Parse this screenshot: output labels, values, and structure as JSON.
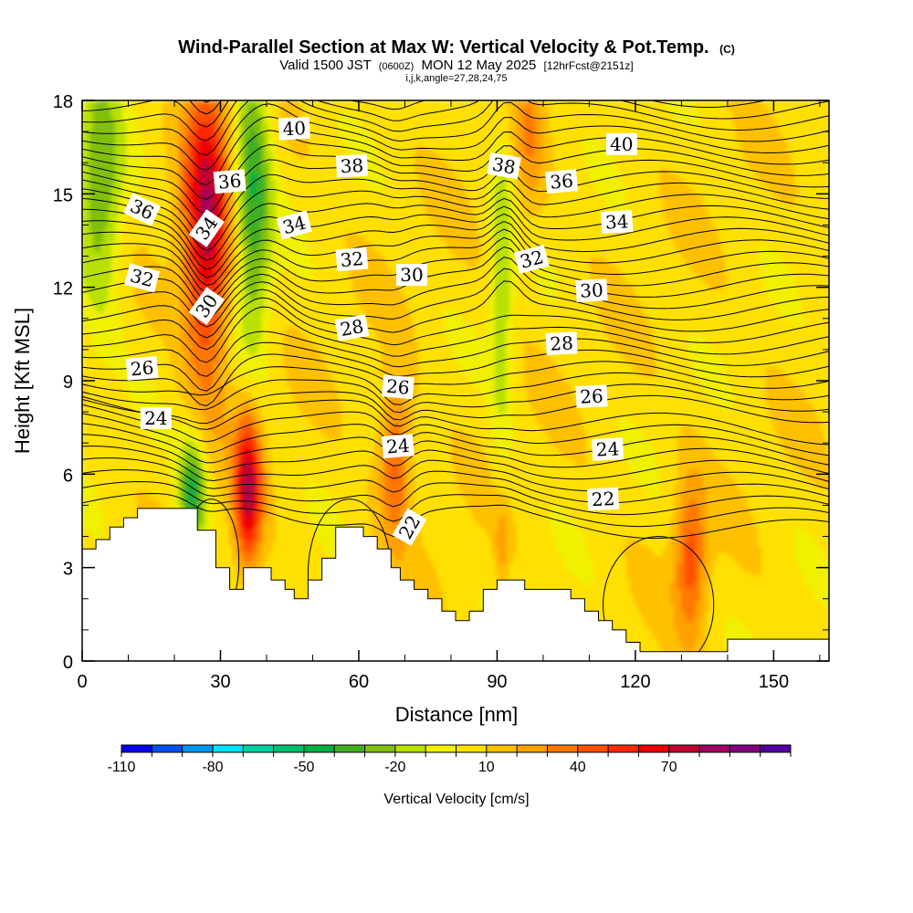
{
  "chart_data": {
    "type": "heatmap",
    "title": "Wind-Parallel Section at Max W: Vertical Velocity & Pot.Temp.",
    "title_tag": "(C)",
    "subtitle_main_a": "Valid 1500 JST",
    "subtitle_utc": "(0600Z)",
    "subtitle_main_b": "MON 12 May 2025",
    "subtitle_fcst": "[12hrFcst@2151z]",
    "subtitle2": "i,j,k,angle=27,28,24,75",
    "xlabel": "Distance [nm]",
    "ylabel": "Height [Kft MSL]",
    "xlim": [
      0,
      162
    ],
    "ylim": [
      0,
      18
    ],
    "x_ticks": [
      0,
      30,
      60,
      90,
      120,
      150
    ],
    "y_ticks": [
      0,
      3,
      6,
      9,
      12,
      15,
      18
    ],
    "x_tick_labels": [
      "0",
      "30",
      "60",
      "90",
      "120",
      "150"
    ],
    "y_tick_labels": [
      "0",
      "3",
      "6",
      "9",
      "12",
      "15",
      "18"
    ],
    "colorbar": {
      "label": "Vertical Velocity [cm/s]",
      "tick_labels": [
        "-110",
        "-80",
        "-50",
        "-20",
        "10",
        "40",
        "70"
      ],
      "colors": [
        "#0000ee",
        "#0050f0",
        "#0094f4",
        "#00e0ff",
        "#00d0a0",
        "#00c070",
        "#00b040",
        "#40b020",
        "#80c010",
        "#b8e000",
        "#f0f000",
        "#ffe000",
        "#ffc000",
        "#ffa000",
        "#ff7800",
        "#ff5000",
        "#ff2800",
        "#ee0000",
        "#c00030",
        "#a00060",
        "#800080",
        "#5000a0"
      ]
    },
    "isentrope_labels": [
      {
        "text": "40",
        "x": 46,
        "y": 17.1,
        "angle": -3
      },
      {
        "text": "38",
        "x": 58.5,
        "y": 15.9,
        "angle": -3
      },
      {
        "text": "36",
        "x": 32,
        "y": 15.4,
        "angle": -5
      },
      {
        "text": "36",
        "x": 13,
        "y": 14.5,
        "angle": 25
      },
      {
        "text": "34",
        "x": 27,
        "y": 13.9,
        "angle": -55
      },
      {
        "text": "34",
        "x": 46,
        "y": 14,
        "angle": -15
      },
      {
        "text": "32",
        "x": 58.5,
        "y": 12.9,
        "angle": -5
      },
      {
        "text": "30",
        "x": 71.5,
        "y": 12.4,
        "angle": 0
      },
      {
        "text": "32",
        "x": 13,
        "y": 12.3,
        "angle": 15
      },
      {
        "text": "30",
        "x": 27,
        "y": 11.4,
        "angle": -55
      },
      {
        "text": "28",
        "x": 58.5,
        "y": 10.7,
        "angle": -10
      },
      {
        "text": "26",
        "x": 13,
        "y": 9.4,
        "angle": -5
      },
      {
        "text": "24",
        "x": 16,
        "y": 7.8,
        "angle": 0
      },
      {
        "text": "26",
        "x": 68.5,
        "y": 8.8,
        "angle": 5
      },
      {
        "text": "24",
        "x": 68.5,
        "y": 6.9,
        "angle": -5
      },
      {
        "text": "22",
        "x": 71,
        "y": 4.3,
        "angle": -60
      },
      {
        "text": "40",
        "x": 117,
        "y": 16.6,
        "angle": 0
      },
      {
        "text": "38",
        "x": 91.5,
        "y": 15.9,
        "angle": 10
      },
      {
        "text": "36",
        "x": 104,
        "y": 15.4,
        "angle": -5
      },
      {
        "text": "34",
        "x": 116,
        "y": 14.1,
        "angle": -3
      },
      {
        "text": "32",
        "x": 97.5,
        "y": 12.9,
        "angle": -15
      },
      {
        "text": "30",
        "x": 110.5,
        "y": 11.9,
        "angle": -3
      },
      {
        "text": "28",
        "x": 104,
        "y": 10.2,
        "angle": -3
      },
      {
        "text": "26",
        "x": 110.5,
        "y": 8.5,
        "angle": -3
      },
      {
        "text": "24",
        "x": 114,
        "y": 6.8,
        "angle": -3
      },
      {
        "text": "22",
        "x": 113,
        "y": 5.2,
        "angle": -3
      }
    ],
    "updrafts": [
      {
        "x": 27,
        "y": 14,
        "rx": 5,
        "ry": 5,
        "peak": 70
      },
      {
        "x": 36,
        "y": 5.5,
        "rx": 3,
        "ry": 2.5,
        "peak": 70
      },
      {
        "x": 68,
        "y": 6.5,
        "rx": 3.5,
        "ry": 2.5,
        "peak": 40
      },
      {
        "x": 132,
        "y": 3.3,
        "rx": 3.5,
        "ry": 2.5,
        "peak": 40
      },
      {
        "x": 97,
        "y": 17,
        "rx": 3,
        "ry": 3,
        "peak": 20
      },
      {
        "x": 91,
        "y": 3.7,
        "rx": 1.5,
        "ry": 1.2,
        "peak": 20
      }
    ],
    "downdrafts": [
      {
        "x": 4,
        "y": 15,
        "rx": 5,
        "ry": 4,
        "peak": -35
      },
      {
        "x": 37,
        "y": 15,
        "rx": 4,
        "ry": 5,
        "peak": -45
      },
      {
        "x": 24,
        "y": 5.4,
        "rx": 3,
        "ry": 1.8,
        "peak": -50
      },
      {
        "x": 91,
        "y": 12,
        "rx": 2.5,
        "ry": 5,
        "peak": -25
      }
    ]
  }
}
